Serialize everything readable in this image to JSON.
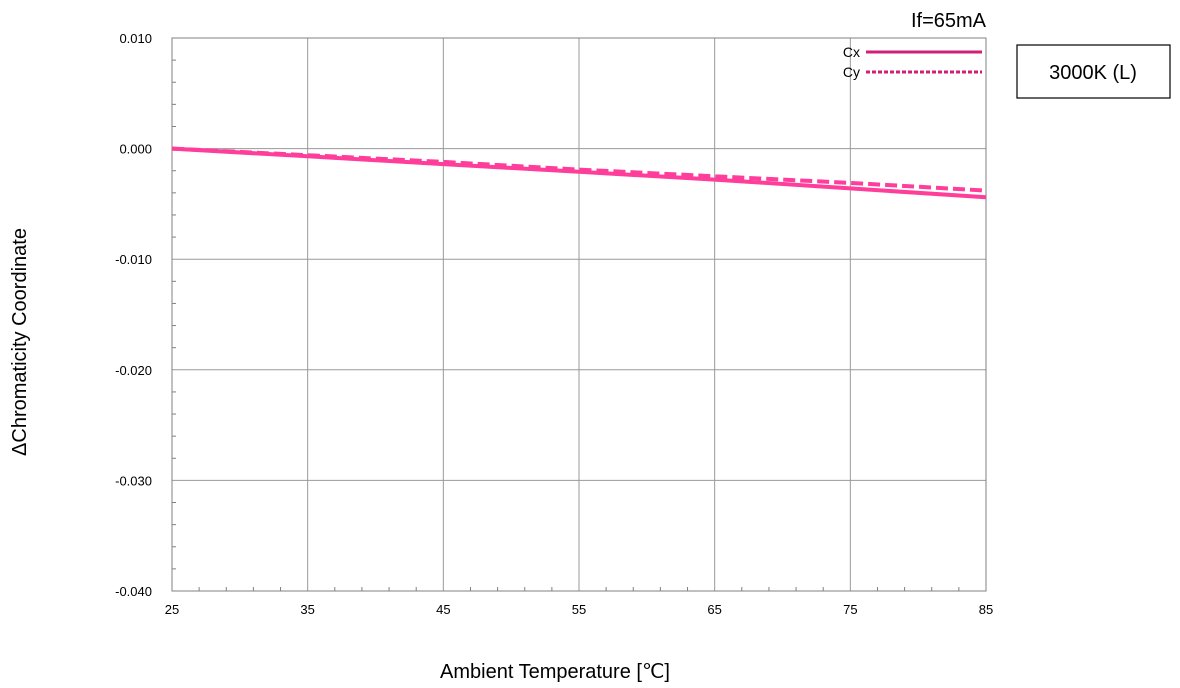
{
  "chart_data": {
    "type": "line",
    "xlabel": "Ambient Temperature [℃]",
    "ylabel": "ΔChromaticity Coordinate",
    "annotation": "If=65mA",
    "label_box": "3000K (L)",
    "xlim": [
      25,
      85
    ],
    "ylim": [
      -0.04,
      0.01
    ],
    "x_ticks": [
      25,
      35,
      45,
      55,
      65,
      75,
      85
    ],
    "x_tick_labels": [
      "25",
      "35",
      "45",
      "55",
      "65",
      "75",
      "85"
    ],
    "y_ticks": [
      0.01,
      0.0,
      -0.01,
      -0.02,
      -0.03,
      -0.04
    ],
    "y_tick_labels": [
      "0.010",
      "0.000",
      "-0.010",
      "-0.020",
      "-0.030",
      "-0.040"
    ],
    "grid": true,
    "legend_position": "top-right",
    "series": [
      {
        "name": "Cx",
        "line_style": "solid",
        "color": "#ff3d9a",
        "legend_color": "#d01f76",
        "x": [
          25,
          35,
          45,
          55,
          65,
          75,
          85
        ],
        "y": [
          0.0,
          -0.0007,
          -0.0014,
          -0.0021,
          -0.0028,
          -0.0036,
          -0.0044
        ]
      },
      {
        "name": "Cy",
        "line_style": "dashed",
        "color": "#ff3d9a",
        "legend_color": "#d01f76",
        "x": [
          25,
          35,
          45,
          55,
          65,
          75,
          85
        ],
        "y": [
          0.0,
          -0.0006,
          -0.0012,
          -0.0019,
          -0.0025,
          -0.0031,
          -0.0038
        ]
      }
    ]
  }
}
